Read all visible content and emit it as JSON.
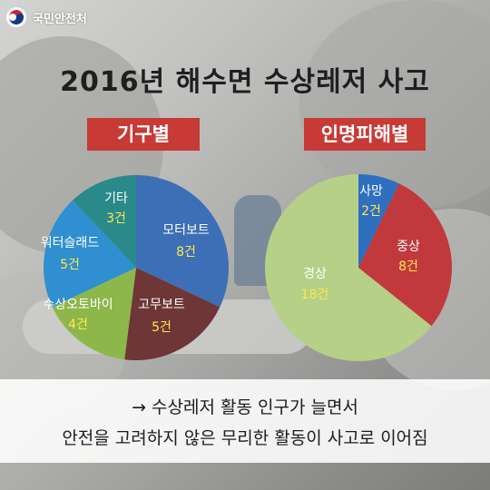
{
  "brand": {
    "name": "국민안전처"
  },
  "title": "2016년 해수면 수상레저 사고",
  "colors": {
    "tag_bg": "#c73a36",
    "value_text": "#ffe94a"
  },
  "chart_data": [
    {
      "type": "pie",
      "title": "기구별",
      "slices": [
        {
          "label": "모터보트",
          "value_label": "8건",
          "value": 8,
          "color": "#3d6fb6"
        },
        {
          "label": "고무보트",
          "value_label": "5건",
          "value": 5,
          "color": "#6e3636"
        },
        {
          "label": "수상오토바이",
          "value_label": "4건",
          "value": 4,
          "color": "#8db74b"
        },
        {
          "label": "워터슬래드",
          "value_label": "5건",
          "value": 5,
          "color": "#2f8fd0"
        },
        {
          "label": "기타",
          "value_label": "3건",
          "value": 3,
          "color": "#2a8a8a"
        }
      ]
    },
    {
      "type": "pie",
      "title": "인명피해별",
      "slices": [
        {
          "label": "사망",
          "value_label": "2건",
          "value": 2,
          "color": "#2f6fc0"
        },
        {
          "label": "중상",
          "value_label": "8건",
          "value": 8,
          "color": "#c1393d"
        },
        {
          "label": "경상",
          "value_label": "18건",
          "value": 18,
          "color": "#b6d088"
        }
      ]
    }
  ],
  "caption": {
    "line1": "→ 수상레저 활동 인구가 늘면서",
    "line2": "안전을 고려하지 않은 무리한 활동이 사고로 이어짐"
  }
}
